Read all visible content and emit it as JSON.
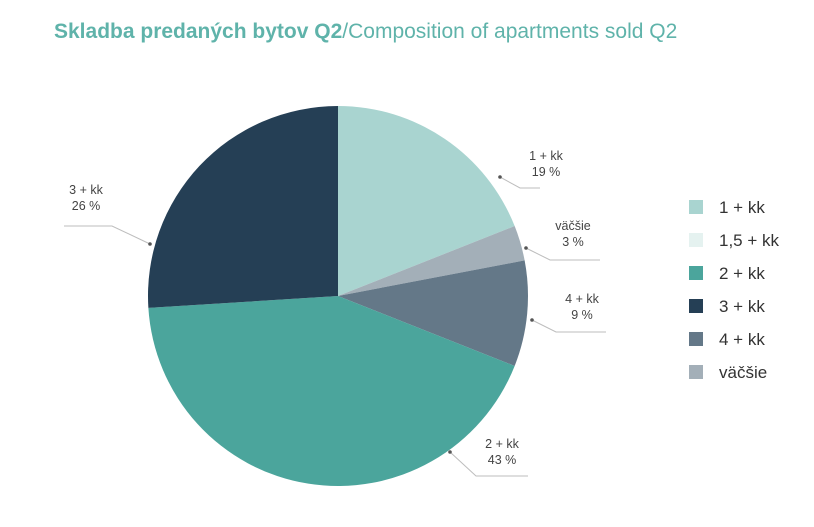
{
  "title": {
    "primary": "Skladba predaných bytov Q2",
    "separator": "/",
    "secondary": "Composition of apartments sold Q2"
  },
  "colors": {
    "title": "#5fb3aa",
    "leader": "#bdbdbd",
    "label_text": "#444444"
  },
  "chart_data": {
    "type": "pie",
    "unit": "%",
    "legend_position": "right",
    "slices": [
      {
        "label": "1 + kk",
        "value": 19,
        "value_text": "19 %",
        "color": "#a9d4d0"
      },
      {
        "label": "väčšie",
        "value": 3,
        "value_text": "3 %",
        "color": "#a3afb8"
      },
      {
        "label": "4 + kk",
        "value": 9,
        "value_text": "9 %",
        "color": "#647888"
      },
      {
        "label": "2 + kk",
        "value": 43,
        "value_text": "43 %",
        "color": "#4ba59c"
      },
      {
        "label": "3 + kk",
        "value": 26,
        "value_text": "26 %",
        "color": "#253f55"
      }
    ],
    "legend": [
      {
        "label": "1 + kk",
        "color": "#a9d4d0"
      },
      {
        "label": "1,5 + kk",
        "color": "#e5f2f0"
      },
      {
        "label": "2 + kk",
        "color": "#4ba59c"
      },
      {
        "label": "3 + kk",
        "color": "#253f55"
      },
      {
        "label": "4 + kk",
        "color": "#647888"
      },
      {
        "label": "väčšie",
        "color": "#a3afb8"
      }
    ]
  }
}
